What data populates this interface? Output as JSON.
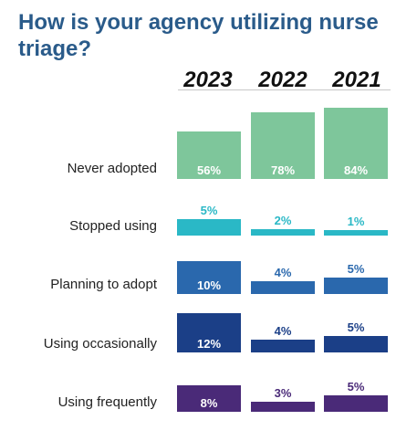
{
  "chart_data": {
    "type": "bar",
    "title": "How is your agency utilizing nurse triage?",
    "years": [
      "2023",
      "2022",
      "2021"
    ],
    "categories": [
      "Never adopted",
      "Stopped using",
      "Planning to adopt",
      "Using occasionally",
      "Using frequently"
    ],
    "unit": "%",
    "series": [
      {
        "values": [
          56,
          5,
          10,
          12,
          8
        ]
      },
      {
        "values": [
          78,
          2,
          4,
          4,
          3
        ]
      },
      {
        "values": [
          84,
          1,
          5,
          5,
          5
        ]
      }
    ],
    "colors": {
      "Never adopted": "#7ec69b",
      "Stopped using": "#2ab8c6",
      "Planning to adopt": "#2a68ad",
      "Using occasionally": "#1b3f87",
      "Using frequently": "#4a2a78"
    },
    "grid": false,
    "legend": "none"
  }
}
